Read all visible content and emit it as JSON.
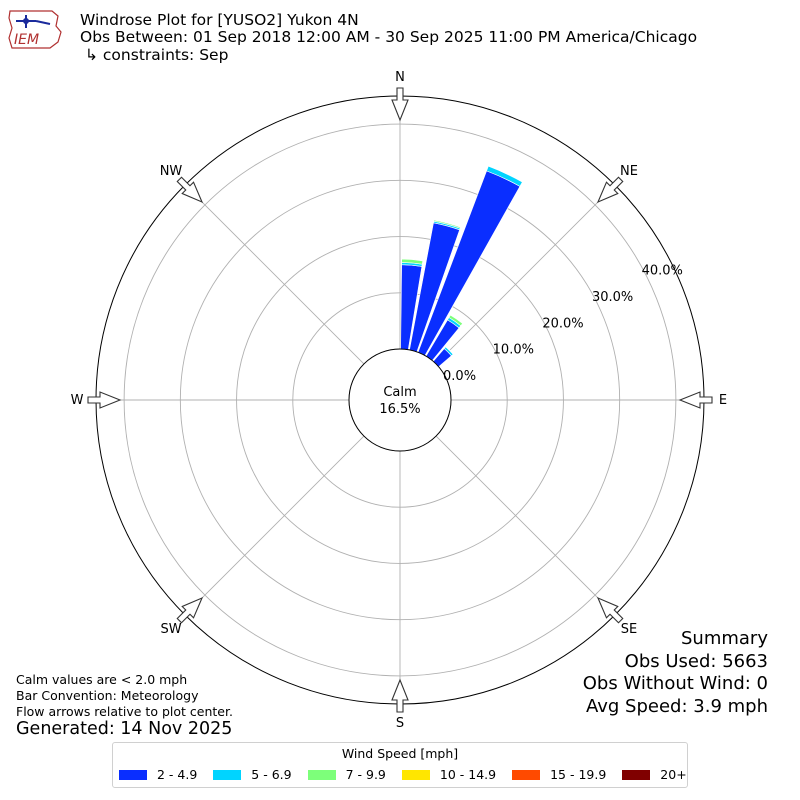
{
  "header": {
    "title": "Windrose Plot for [YUSO2] Yukon 4N",
    "obs_between": "Obs Between: 01 Sep 2018 12:00 AM - 30 Sep 2025 11:00 PM America/Chicago",
    "constraints": "↳ constraints: Sep",
    "logo_text": "IEM"
  },
  "notes": {
    "calm_note": "Calm values are < 2.0 mph",
    "bar_convention": "Bar Convention: Meteorology",
    "flow_arrows": "Flow arrows relative to plot center.",
    "generated": "Generated: 14 Nov 2025"
  },
  "summary": {
    "title": "Summary",
    "obs_used": "Obs Used: 5663",
    "obs_without_wind": "Obs Without Wind: 0",
    "avg_speed": "Avg Speed: 3.9 mph"
  },
  "chart_data": {
    "type": "windrose",
    "title": "Windrose Plot for [YUSO2] Yukon 4N",
    "calm": {
      "label": "Calm",
      "value": "16.5%"
    },
    "radial_ticks": [
      0,
      10,
      20,
      30,
      40
    ],
    "radial_tick_labels": [
      "0.0%",
      "10.0%",
      "20.0%",
      "30.0%",
      "40.0%"
    ],
    "r_max": 45,
    "directions": [
      "N",
      "NE",
      "E",
      "SE",
      "S",
      "SW",
      "W",
      "NW"
    ],
    "legend_title": "Wind Speed [mph]",
    "speed_bins": [
      {
        "label": "2 - 4.9",
        "color": "#0a2eff"
      },
      {
        "label": "5 - 6.9",
        "color": "#00d4ff"
      },
      {
        "label": "7 - 9.9",
        "color": "#7dff7a"
      },
      {
        "label": "10 - 14.9",
        "color": "#ffe600"
      },
      {
        "label": "15 - 19.9",
        "color": "#ff4a00"
      },
      {
        "label": "20+",
        "color": "#800000"
      }
    ],
    "sectors": [
      {
        "direction_deg": 5,
        "cumulative": [
          15.0,
          15.4,
          16.0,
          16.0,
          16.0,
          16.0
        ]
      },
      {
        "direction_deg": 15,
        "cumulative": [
          23.0,
          23.3,
          23.5,
          23.5,
          23.5,
          23.5
        ]
      },
      {
        "direction_deg": 25,
        "cumulative": [
          34.5,
          35.4,
          35.5,
          35.5,
          35.5,
          35.5
        ]
      },
      {
        "direction_deg": 35,
        "cumulative": [
          7.5,
          8.0,
          8.5,
          8.5,
          8.5,
          8.5
        ]
      },
      {
        "direction_deg": 45,
        "cumulative": [
          3.0,
          3.4,
          3.5,
          3.5,
          3.5,
          3.5
        ]
      }
    ],
    "grid": true
  }
}
